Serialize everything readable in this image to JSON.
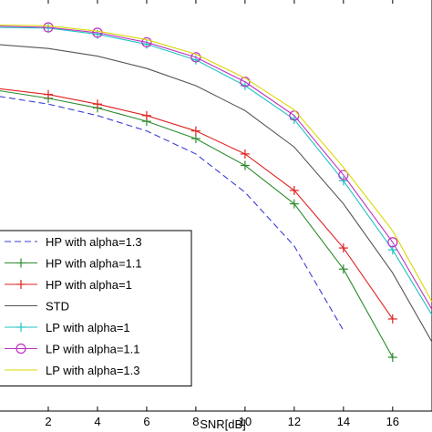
{
  "chart_data": {
    "type": "line",
    "xlabel": "SNR[dB]",
    "ylabel": "",
    "title": "",
    "xlim": [
      0,
      17.6
    ],
    "ylim": [
      0,
      1
    ],
    "x_ticks": [
      2,
      4,
      6,
      8,
      10,
      12,
      14,
      16
    ],
    "legend_position": "bottom-left",
    "grid": false,
    "series": [
      {
        "name": "HP with  alpha=1.3",
        "color": "#3b3bd6",
        "dash": "dashed",
        "marker": "none",
        "x": [
          0,
          2,
          4,
          6,
          8,
          10,
          12,
          14
        ],
        "y": [
          0.82,
          0.8,
          0.77,
          0.73,
          0.67,
          0.57,
          0.43,
          0.21
        ]
      },
      {
        "name": "HP with  alpha=1.1",
        "color": "#2e8b2e",
        "dash": "solid",
        "marker": "plus",
        "x": [
          0,
          2,
          4,
          6,
          8,
          10,
          12,
          14,
          16
        ],
        "y": [
          0.835,
          0.815,
          0.79,
          0.755,
          0.71,
          0.64,
          0.54,
          0.37,
          0.14
        ]
      },
      {
        "name": "HP with  alpha=1",
        "color": "#e02020",
        "dash": "solid",
        "marker": "plus",
        "x": [
          0,
          2,
          4,
          6,
          8,
          10,
          12,
          14,
          16
        ],
        "y": [
          0.84,
          0.825,
          0.8,
          0.77,
          0.73,
          0.67,
          0.575,
          0.425,
          0.24
        ]
      },
      {
        "name": "STD",
        "color": "#555555",
        "dash": "solid",
        "marker": "none",
        "x": [
          0,
          2,
          4,
          6,
          8,
          10,
          12,
          14,
          16,
          17.6
        ],
        "y": [
          0.955,
          0.945,
          0.925,
          0.893,
          0.848,
          0.783,
          0.688,
          0.54,
          0.36,
          0.18
        ]
      },
      {
        "name": "LP with  alpha=1",
        "color": "#1fc4c4",
        "dash": "solid",
        "marker": "plus",
        "x": [
          0,
          2,
          4,
          6,
          8,
          10,
          12,
          14,
          16,
          17.6
        ],
        "y": [
          1.0,
          0.998,
          0.982,
          0.956,
          0.915,
          0.848,
          0.76,
          0.6,
          0.42,
          0.25
        ]
      },
      {
        "name": "LP with  alpha=1.1",
        "color": "#c030c0",
        "dash": "solid",
        "marker": "circle",
        "x": [
          0,
          2,
          4,
          6,
          8,
          10,
          12,
          14,
          16,
          17.6
        ],
        "y": [
          1.003,
          1.0,
          0.986,
          0.961,
          0.922,
          0.858,
          0.77,
          0.615,
          0.44,
          0.265
        ]
      },
      {
        "name": "LP with  alpha=1.3",
        "color": "#d8d800",
        "dash": "solid",
        "marker": "none",
        "x": [
          0,
          2,
          4,
          6,
          8,
          10,
          12,
          14,
          16,
          17.6
        ],
        "y": [
          1.006,
          1.004,
          0.99,
          0.968,
          0.93,
          0.868,
          0.785,
          0.635,
          0.47,
          0.285
        ]
      }
    ]
  }
}
